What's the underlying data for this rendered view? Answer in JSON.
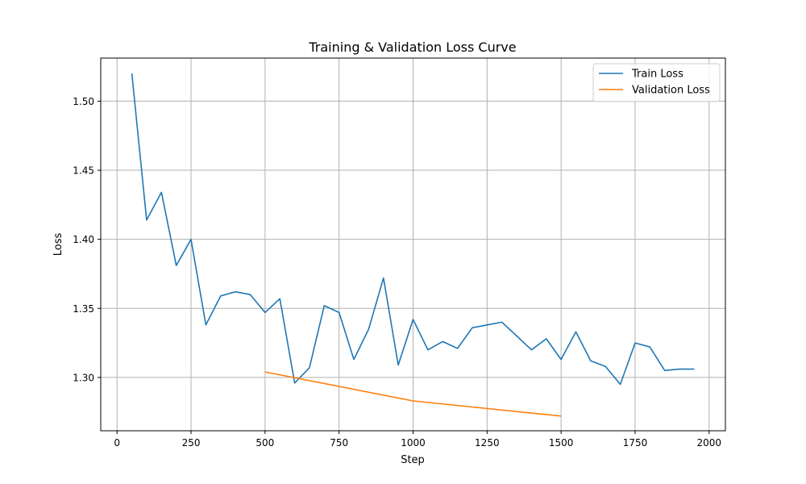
{
  "chart_data": {
    "type": "line",
    "title": "Training & Validation Loss Curve",
    "xlabel": "Step",
    "ylabel": "Loss",
    "xlim": [
      -55,
      2055
    ],
    "ylim": [
      1.2614,
      1.5312
    ],
    "x_ticks": [
      0,
      250,
      500,
      750,
      1000,
      1250,
      1500,
      1750,
      2000
    ],
    "x_tick_labels": [
      "0",
      "250",
      "500",
      "750",
      "1000",
      "1250",
      "1500",
      "1750",
      "2000"
    ],
    "y_ticks": [
      1.3,
      1.35,
      1.4,
      1.45,
      1.5
    ],
    "y_tick_labels": [
      "1.30",
      "1.35",
      "1.40",
      "1.45",
      "1.50"
    ],
    "grid": true,
    "legend_position": "top-right",
    "series": [
      {
        "name": "Train Loss",
        "color": "#1f77b4",
        "x": [
          50,
          100,
          150,
          200,
          250,
          300,
          350,
          400,
          450,
          500,
          550,
          600,
          650,
          700,
          750,
          800,
          850,
          900,
          950,
          1000,
          1050,
          1100,
          1150,
          1200,
          1250,
          1300,
          1350,
          1400,
          1450,
          1500,
          1550,
          1600,
          1650,
          1700,
          1750,
          1800,
          1850,
          1900,
          1950
        ],
        "y": [
          1.52,
          1.414,
          1.434,
          1.381,
          1.4,
          1.338,
          1.359,
          1.362,
          1.36,
          1.347,
          1.357,
          1.296,
          1.307,
          1.352,
          1.347,
          1.313,
          1.335,
          1.372,
          1.309,
          1.342,
          1.32,
          1.326,
          1.321,
          1.336,
          1.338,
          1.34,
          1.33,
          1.32,
          1.328,
          1.313,
          1.333,
          1.312,
          1.308,
          1.295,
          1.325,
          1.322,
          1.305,
          1.306,
          1.306
        ]
      },
      {
        "name": "Validation Loss",
        "color": "#ff7f0e",
        "x": [
          500,
          1000,
          1500
        ],
        "y": [
          1.304,
          1.283,
          1.272
        ]
      }
    ]
  }
}
